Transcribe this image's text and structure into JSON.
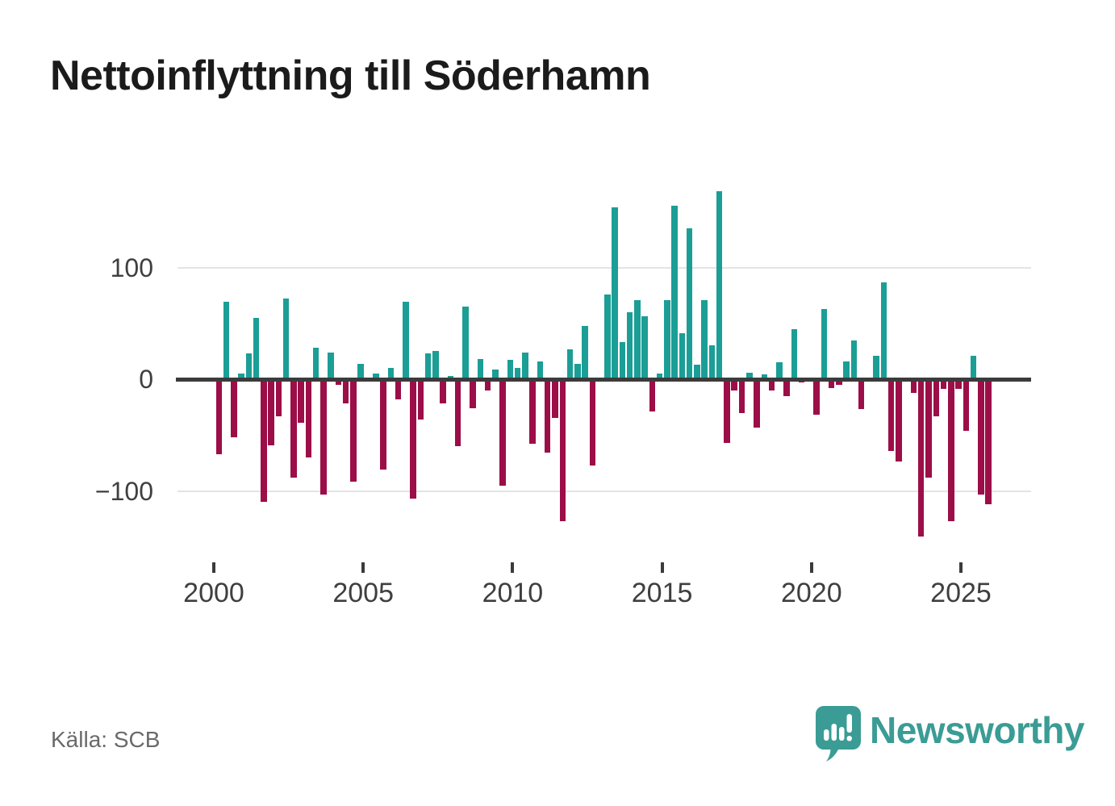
{
  "header": {
    "title": "Nettoinflyttning till Söderhamn"
  },
  "footer": {
    "source": "Källa: SCB",
    "brand": "Newsworthy",
    "brand_icon": "newsworthy-speech-bubble-bar-chart-icon"
  },
  "colors": {
    "positive_bar": "#1b9e96",
    "negative_bar": "#9c0e47",
    "zero_axis": "#3b3b3b",
    "gridline": "#e3e3e3",
    "axis_text": "#3f3f3f",
    "title_text": "#1b1b1b",
    "source_text": "#6a6a6a",
    "brand_teal": "#3a9c95"
  },
  "chart_data": {
    "type": "bar",
    "title": "Nettoinflyttning till Söderhamn",
    "xlabel": "",
    "ylabel": "",
    "x_unit": "quarter",
    "ylim": [
      -150,
      175
    ],
    "grid": "horizontal",
    "legend_position": "none",
    "y_ticks": [
      100,
      0,
      -100
    ],
    "y_tick_labels": [
      "100",
      "0",
      "−100"
    ],
    "x_tick_years": [
      2000,
      2005,
      2010,
      2015,
      2020,
      2025
    ],
    "series": [
      {
        "year": 2000,
        "values": [
          -67,
          69,
          -52,
          5
        ]
      },
      {
        "year": 2001,
        "values": [
          23,
          55,
          -110,
          -59
        ]
      },
      {
        "year": 2002,
        "values": [
          -33,
          72,
          -88,
          -39
        ]
      },
      {
        "year": 2003,
        "values": [
          -70,
          28,
          -103,
          24
        ]
      },
      {
        "year": 2004,
        "values": [
          -5,
          -22,
          -92,
          14
        ]
      },
      {
        "year": 2005,
        "values": [
          0,
          5,
          -81,
          10
        ]
      },
      {
        "year": 2006,
        "values": [
          -18,
          69,
          -107,
          -36
        ]
      },
      {
        "year": 2007,
        "values": [
          23,
          25,
          -22,
          3
        ]
      },
      {
        "year": 2008,
        "values": [
          -60,
          65,
          -26,
          18
        ]
      },
      {
        "year": 2009,
        "values": [
          -10,
          9,
          -95,
          17
        ]
      },
      {
        "year": 2010,
        "values": [
          10,
          24,
          -58,
          16
        ]
      },
      {
        "year": 2011,
        "values": [
          -66,
          -35,
          -127,
          27
        ]
      },
      {
        "year": 2012,
        "values": [
          14,
          48,
          -77,
          0
        ]
      },
      {
        "year": 2013,
        "values": [
          76,
          154,
          33,
          60
        ]
      },
      {
        "year": 2014,
        "values": [
          71,
          56,
          -29,
          5
        ]
      },
      {
        "year": 2015,
        "values": [
          71,
          155,
          41,
          135
        ]
      },
      {
        "year": 2016,
        "values": [
          13,
          71,
          30,
          168
        ]
      },
      {
        "year": 2017,
        "values": [
          -57,
          -10,
          -30,
          6
        ]
      },
      {
        "year": 2018,
        "values": [
          -43,
          4,
          -10,
          15
        ]
      },
      {
        "year": 2019,
        "values": [
          -15,
          45,
          -3,
          0
        ]
      },
      {
        "year": 2020,
        "values": [
          -32,
          63,
          -8,
          -5
        ]
      },
      {
        "year": 2021,
        "values": [
          16,
          35,
          -27,
          0
        ]
      },
      {
        "year": 2022,
        "values": [
          21,
          87,
          -64,
          -74
        ]
      },
      {
        "year": 2023,
        "values": [
          0,
          -12,
          -141,
          -88
        ]
      },
      {
        "year": 2024,
        "values": [
          -33,
          -9,
          -127,
          -9
        ]
      },
      {
        "year": 2025,
        "values": [
          -46,
          21,
          -103,
          -112
        ]
      }
    ]
  }
}
